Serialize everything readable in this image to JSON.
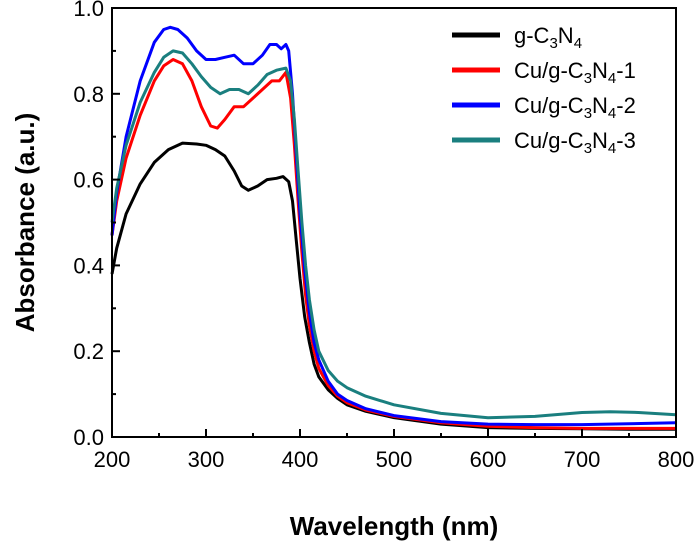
{
  "chart_data": {
    "type": "line",
    "xlabel": "Wavelength (nm)",
    "ylabel": "Absorbance (a.u.)",
    "xlim": [
      200,
      800
    ],
    "ylim": [
      0.0,
      1.0
    ],
    "x_ticks": [
      "200",
      "300",
      "400",
      "500",
      "600",
      "700",
      "800"
    ],
    "y_ticks": [
      "0.0",
      "0.2",
      "0.4",
      "0.6",
      "0.8",
      "1.0"
    ],
    "grid": false,
    "legend_position": "top-right",
    "series": [
      {
        "name": "g-C3N4",
        "legend_label": {
          "pre": "g-C",
          "sub1": "3",
          "mid": "N",
          "sub2": "4",
          "post": ""
        },
        "color": "#000000",
        "x": [
          200,
          205,
          215,
          230,
          245,
          260,
          275,
          290,
          300,
          310,
          320,
          330,
          338,
          345,
          355,
          365,
          375,
          382,
          388,
          392,
          396,
          400,
          405,
          410,
          415,
          420,
          430,
          440,
          450,
          470,
          500,
          550,
          600,
          650,
          700,
          750,
          800
        ],
        "y": [
          0.38,
          0.44,
          0.52,
          0.59,
          0.64,
          0.67,
          0.685,
          0.683,
          0.68,
          0.67,
          0.655,
          0.62,
          0.585,
          0.575,
          0.585,
          0.6,
          0.603,
          0.607,
          0.595,
          0.55,
          0.46,
          0.37,
          0.28,
          0.22,
          0.17,
          0.14,
          0.11,
          0.09,
          0.075,
          0.06,
          0.045,
          0.03,
          0.022,
          0.02,
          0.019,
          0.018,
          0.018
        ]
      },
      {
        "name": "Cu/g-C3N4-1",
        "legend_label": {
          "pre": "Cu/g-C",
          "sub1": "3",
          "mid": "N",
          "sub2": "4",
          "post": "-1"
        },
        "color": "#ff0000",
        "x": [
          200,
          205,
          215,
          230,
          245,
          255,
          265,
          275,
          285,
          295,
          305,
          312,
          320,
          330,
          340,
          350,
          360,
          370,
          378,
          385,
          390,
          394,
          398,
          402,
          406,
          410,
          415,
          420,
          430,
          440,
          450,
          470,
          500,
          550,
          600,
          650,
          700,
          750,
          800
        ],
        "y": [
          0.47,
          0.55,
          0.65,
          0.75,
          0.83,
          0.865,
          0.88,
          0.87,
          0.83,
          0.77,
          0.725,
          0.72,
          0.74,
          0.77,
          0.77,
          0.79,
          0.81,
          0.83,
          0.83,
          0.85,
          0.79,
          0.68,
          0.55,
          0.43,
          0.33,
          0.26,
          0.2,
          0.16,
          0.12,
          0.095,
          0.08,
          0.063,
          0.048,
          0.033,
          0.025,
          0.022,
          0.02,
          0.02,
          0.02
        ]
      },
      {
        "name": "Cu/g-C3N4-2",
        "legend_label": {
          "pre": "Cu/g-C",
          "sub1": "3",
          "mid": "N",
          "sub2": "4",
          "post": "-2"
        },
        "color": "#0000ff",
        "x": [
          200,
          205,
          215,
          230,
          245,
          255,
          262,
          270,
          280,
          290,
          300,
          310,
          320,
          330,
          340,
          350,
          360,
          368,
          375,
          380,
          385,
          388,
          392,
          396,
          400,
          405,
          410,
          415,
          420,
          430,
          440,
          450,
          470,
          500,
          550,
          600,
          650,
          700,
          750,
          800
        ],
        "y": [
          0.47,
          0.57,
          0.7,
          0.83,
          0.92,
          0.95,
          0.955,
          0.95,
          0.93,
          0.9,
          0.88,
          0.88,
          0.885,
          0.89,
          0.87,
          0.87,
          0.89,
          0.915,
          0.915,
          0.905,
          0.915,
          0.9,
          0.8,
          0.66,
          0.52,
          0.39,
          0.29,
          0.22,
          0.18,
          0.13,
          0.1,
          0.085,
          0.066,
          0.05,
          0.036,
          0.03,
          0.029,
          0.029,
          0.031,
          0.033
        ]
      },
      {
        "name": "Cu/g-C3N4-3",
        "legend_label": {
          "pre": "Cu/g-C",
          "sub1": "3",
          "mid": "N",
          "sub2": "4",
          "post": "-3"
        },
        "color": "#1a7f7f",
        "x": [
          200,
          205,
          215,
          230,
          245,
          255,
          265,
          275,
          285,
          295,
          305,
          315,
          325,
          335,
          345,
          355,
          365,
          375,
          385,
          390,
          394,
          398,
          402,
          406,
          410,
          415,
          420,
          430,
          440,
          450,
          470,
          500,
          550,
          600,
          650,
          700,
          730,
          760,
          800
        ],
        "y": [
          0.5,
          0.58,
          0.68,
          0.78,
          0.85,
          0.885,
          0.9,
          0.895,
          0.87,
          0.84,
          0.815,
          0.8,
          0.81,
          0.81,
          0.8,
          0.82,
          0.845,
          0.855,
          0.86,
          0.83,
          0.74,
          0.62,
          0.5,
          0.4,
          0.32,
          0.25,
          0.2,
          0.155,
          0.13,
          0.115,
          0.095,
          0.075,
          0.055,
          0.045,
          0.048,
          0.057,
          0.059,
          0.057,
          0.052
        ]
      }
    ]
  }
}
